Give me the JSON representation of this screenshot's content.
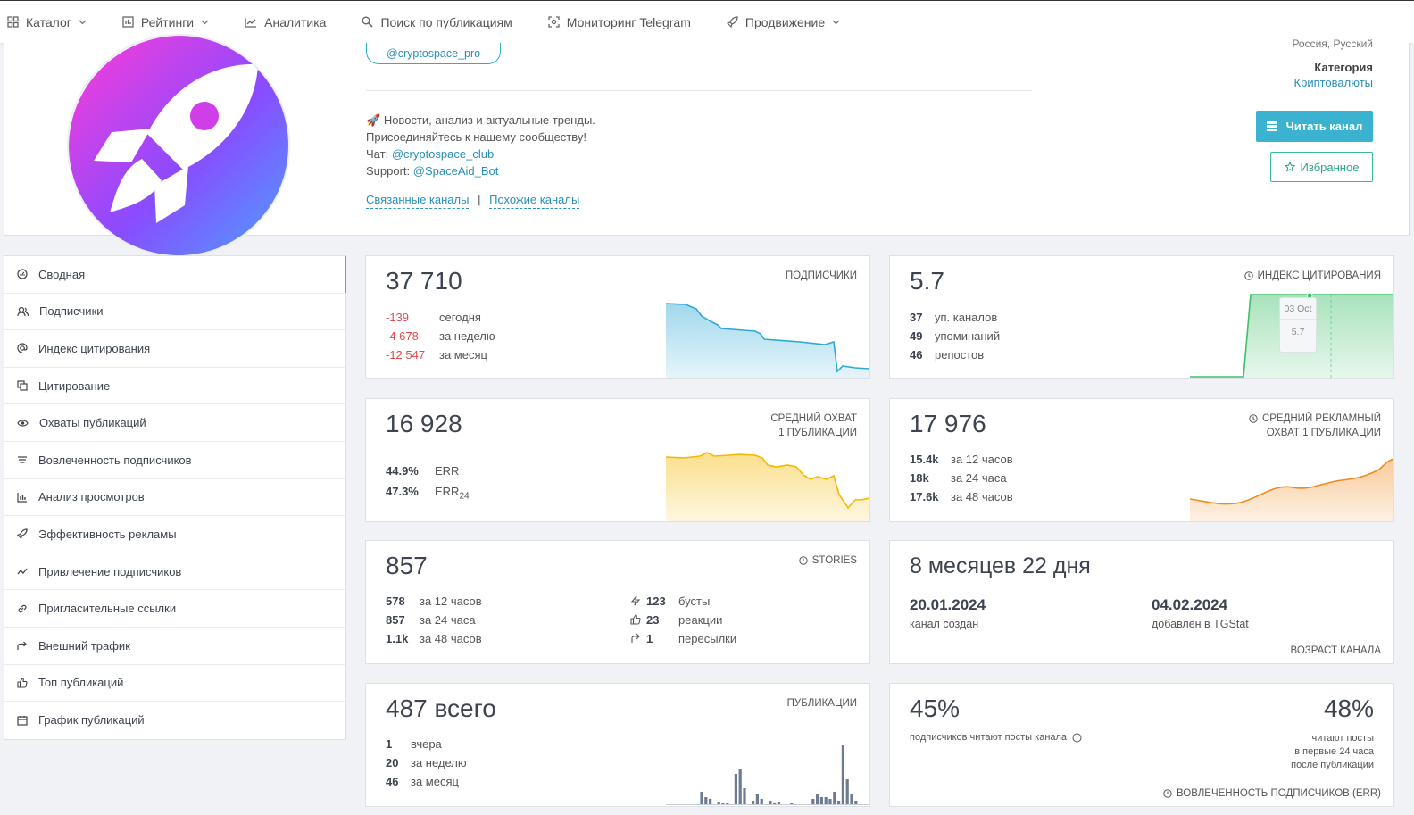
{
  "nav": {
    "items": [
      {
        "label": "Каталог",
        "icon": "grid-icon",
        "dropdown": true
      },
      {
        "label": "Рейтинги",
        "icon": "chart-box-icon",
        "dropdown": true
      },
      {
        "label": "Аналитика",
        "icon": "line-chart-icon",
        "dropdown": false
      },
      {
        "label": "Поиск по публикациям",
        "icon": "search-icon",
        "dropdown": false
      },
      {
        "label": "Мониторинг Telegram",
        "icon": "scan-icon",
        "dropdown": false
      },
      {
        "label": "Продвижение",
        "icon": "rocket-icon",
        "dropdown": true
      }
    ]
  },
  "channel": {
    "handle": "@cryptospace_pro",
    "desc_line1": "Новости, анализ и актуальные тренды.",
    "desc_line2": "Присоединяйтесь к нашему сообществу!",
    "chat_label": "Чат:",
    "chat_link": "@cryptospace_club",
    "support_label": "Support:",
    "support_link": "@SpaceAid_Bot",
    "related_link": "Связанные каналы",
    "similar_link": "Похожие каналы",
    "geo": "Россия, Русский",
    "category_label": "Категория",
    "category_value": "Криптовалюты",
    "read_button": "Читать канал",
    "fav_button": "Избранное",
    "avatar_gradient": [
      "#ff3bd7",
      "#8a4bff",
      "#4aa3ff"
    ]
  },
  "sidebar": {
    "items": [
      {
        "label": "Сводная",
        "icon": "dashboard-icon"
      },
      {
        "label": "Подписчики",
        "icon": "users-icon"
      },
      {
        "label": "Индекс цитирования",
        "icon": "at-icon"
      },
      {
        "label": "Цитирование",
        "icon": "copy-icon"
      },
      {
        "label": "Охваты публикаций",
        "icon": "eye-icon"
      },
      {
        "label": "Вовлеченность подписчиков",
        "icon": "engagement-icon"
      },
      {
        "label": "Анализ просмотров",
        "icon": "bar-chart-icon"
      },
      {
        "label": "Эффективность рекламы",
        "icon": "rocket-icon"
      },
      {
        "label": "Привлечение подписчиков",
        "icon": "trend-icon"
      },
      {
        "label": "Пригласительные ссылки",
        "icon": "link-icon"
      },
      {
        "label": "Внешний трафик",
        "icon": "share-icon"
      },
      {
        "label": "Топ публикаций",
        "icon": "thumbs-up-icon"
      },
      {
        "label": "График публикаций",
        "icon": "calendar-icon"
      }
    ]
  },
  "subscribers": {
    "value": "37 710",
    "title": "подписчики",
    "rows": [
      {
        "n": "-139",
        "t": "сегодня"
      },
      {
        "n": "-4 678",
        "t": "за неделю"
      },
      {
        "n": "-12 547",
        "t": "за месяц"
      }
    ],
    "color": "#2ea9d6"
  },
  "citation": {
    "value": "5.7",
    "title": "индекс цитирования",
    "rows": [
      {
        "n": "37",
        "t": "уп. каналов"
      },
      {
        "n": "49",
        "t": "упоминаний"
      },
      {
        "n": "46",
        "t": "репостов"
      }
    ],
    "tooltip_date": "03 Oct",
    "tooltip_value": "5.7",
    "color": "#3fbf6a"
  },
  "reach": {
    "value": "16 928",
    "title1": "средний охват",
    "title2": "1 публикации",
    "err_value": "44.9%",
    "err_label": "ERR",
    "err24_value": "47.3%",
    "err24_label": "ERR",
    "err24_sub": "24",
    "color": "#f5b800"
  },
  "ad_reach": {
    "value": "17 976",
    "title1": "средний рекламный",
    "title2": "охват 1 публикации",
    "rows": [
      {
        "n": "15.4k",
        "t": "за 12 часов"
      },
      {
        "n": "18k",
        "t": "за 24 часа"
      },
      {
        "n": "17.6k",
        "t": "за 48 часов"
      }
    ],
    "color": "#f08a1c"
  },
  "stories": {
    "value": "857",
    "title": "stories",
    "rows": [
      {
        "n": "578",
        "t": "за 12 часов"
      },
      {
        "n": "857",
        "t": "за 24 часа"
      },
      {
        "n": "1.1k",
        "t": "за 48 часов"
      }
    ],
    "rows2": [
      {
        "icon": "bolt-icon",
        "n": "123",
        "t": "бусты"
      },
      {
        "icon": "thumbs-up-icon",
        "n": "23",
        "t": "реакции"
      },
      {
        "icon": "forward-icon",
        "n": "1",
        "t": "пересылки"
      }
    ]
  },
  "age": {
    "value": "8 месяцев 22 дня",
    "created_date": "20.01.2024",
    "created_label": "канал создан",
    "added_date": "04.02.2024",
    "added_label": "добавлен в TGStat",
    "title": "возраст канала"
  },
  "posts": {
    "value": "487 всего",
    "title": "публикации",
    "rows": [
      {
        "n": "1",
        "t": "вчера"
      },
      {
        "n": "20",
        "t": "за неделю"
      },
      {
        "n": "46",
        "t": "за месяц"
      }
    ],
    "color": "#6d7c92"
  },
  "engagement": {
    "left_value": "45%",
    "left_label": "подписчиков читают посты канала",
    "right_value": "48%",
    "right_label1": "читают посты",
    "right_label2": "в первые 24 часа",
    "right_label3": "после публикации",
    "title": "вовлеченность подписчиков (ERR)"
  }
}
